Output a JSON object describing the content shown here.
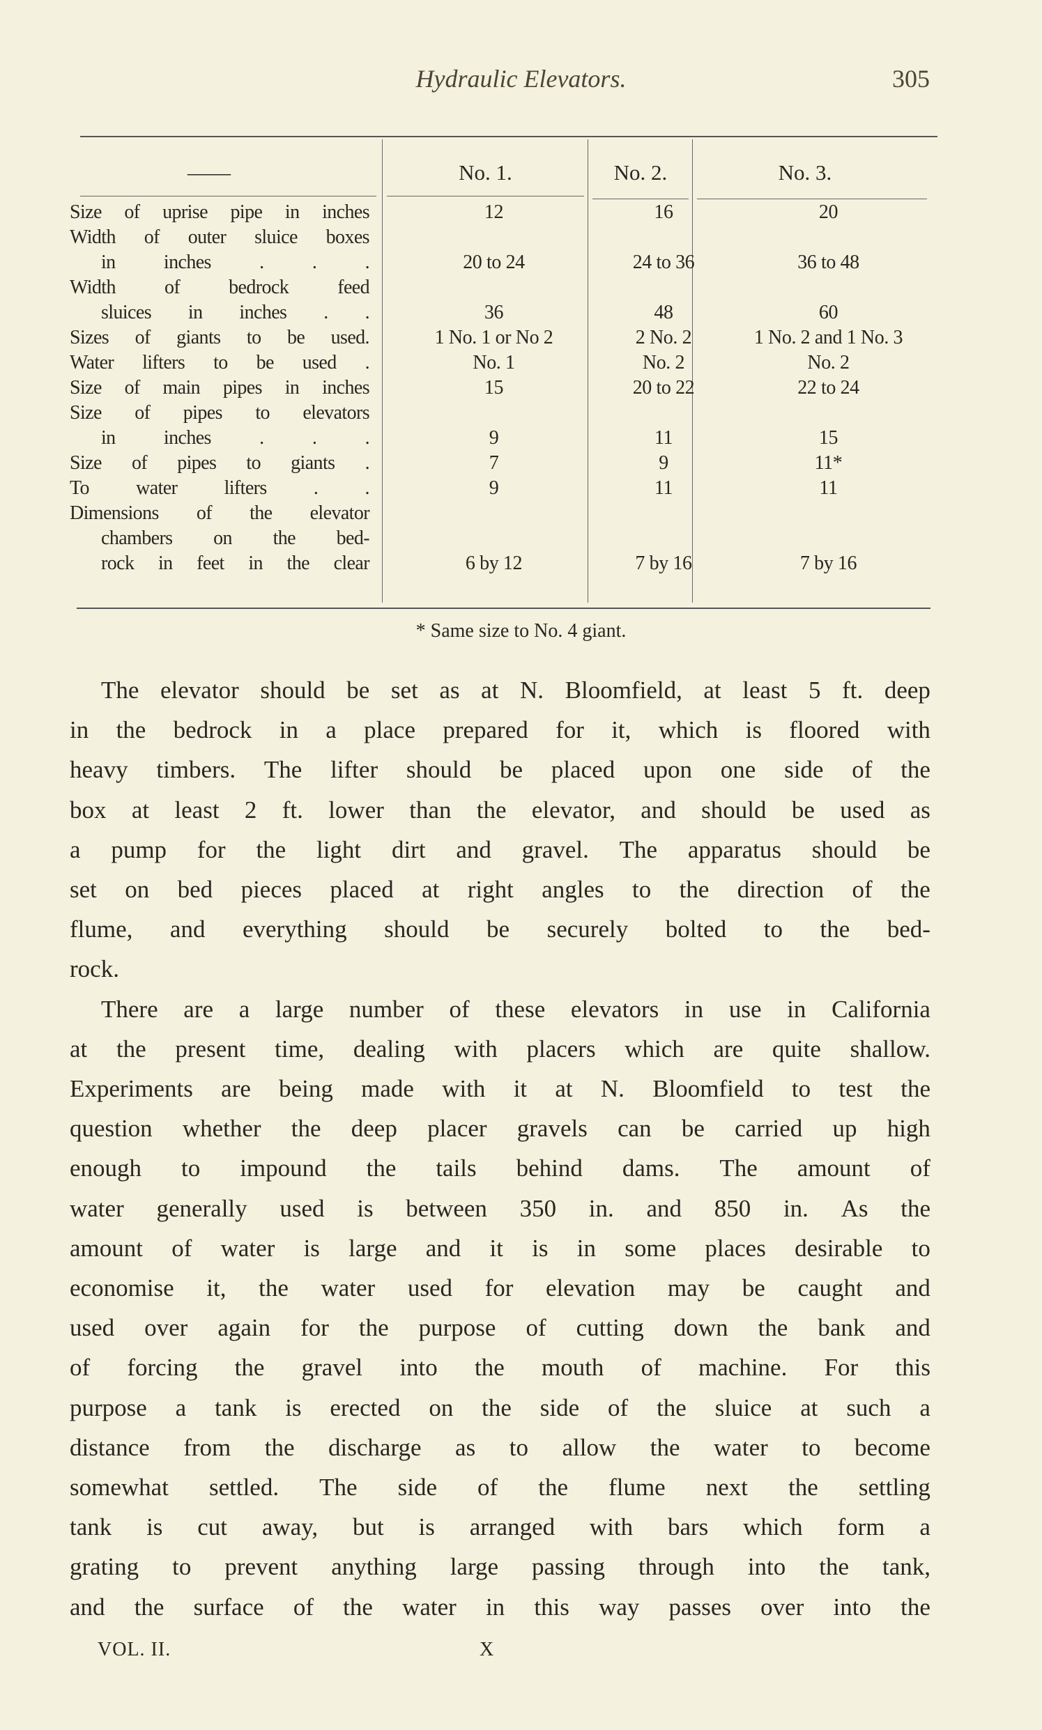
{
  "header": {
    "running_title": "Hydraulic Elevators.",
    "page_number": "305"
  },
  "table": {
    "corner": "——",
    "columns": [
      "No. 1.",
      "No. 2.",
      "No. 3."
    ],
    "rows": [
      {
        "label": [
          "Size of uprise pipe in inches"
        ],
        "values": [
          "12",
          "16",
          "20"
        ]
      },
      {
        "label": [
          "Width of outer sluice boxes",
          "in inches . . ."
        ],
        "values": [
          "20 to 24",
          "24 to 36",
          "36 to 48"
        ]
      },
      {
        "label": [
          "Width of bedrock feed",
          "sluices in inches . ."
        ],
        "values": [
          "36",
          "48",
          "60"
        ]
      },
      {
        "label": [
          "Sizes of giants to be used."
        ],
        "values": [
          "1 No. 1 or No 2",
          "2 No. 2",
          "1 No. 2 and 1 No. 3"
        ]
      },
      {
        "label": [
          "Water lifters to be used ."
        ],
        "values": [
          "No. 1",
          "No. 2",
          "No. 2"
        ]
      },
      {
        "label": [
          "Size of main pipes in inches"
        ],
        "values": [
          "15",
          "20 to 22",
          "22 to 24"
        ]
      },
      {
        "label": [
          "Size of pipes to elevators",
          "in inches . . ."
        ],
        "values": [
          "9",
          "11",
          "15"
        ]
      },
      {
        "label": [
          "Size of pipes to giants ."
        ],
        "values": [
          "7",
          "9",
          "11*"
        ]
      },
      {
        "label": [
          "To water lifters . ."
        ],
        "values": [
          "9",
          "11",
          "11"
        ]
      },
      {
        "label": [
          "Dimensions of the elevator",
          "chambers on the bed-",
          "rock in feet in the clear"
        ],
        "values": [
          "6 by 12",
          "7 by 16",
          "7 by 16"
        ]
      }
    ],
    "footnote": "* Same size to No. 4 giant."
  },
  "body": {
    "paragraphs": [
      [
        "The elevator should be set as at N. Bloomfield, at least 5 ft. deep",
        "in the bedrock in a place prepared for it, which is floored with",
        "heavy timbers. The lifter should be placed upon one side of the",
        "box at least 2 ft. lower than the elevator, and should be used as",
        "a pump for the light dirt and gravel. The apparatus should be",
        "set on bed pieces placed at right angles to the direction of the",
        "flume, and everything should be securely bolted to the bed-",
        "rock."
      ],
      [
        "There are a large number of these elevators in use in California",
        "at the present time, dealing with placers which are quite shallow.",
        "Experiments are being made with it at N. Bloomfield to test the",
        "question whether the deep placer gravels can be carried up high",
        "enough to impound the tails behind dams. The amount of",
        "water generally used is between 350 in. and 850 in. As the",
        "amount of water is large and it is in some places desirable to",
        "economise it, the water used for elevation may be caught and",
        "used over again for the purpose of cutting down the bank and",
        "of forcing the gravel into the mouth of machine. For this",
        "purpose a tank is erected on the side of the sluice at such a",
        "distance from the discharge as to allow the water to become",
        "somewhat settled. The side of the flume next the settling",
        "tank is cut away, but is arranged with bars which form a",
        "grating to prevent anything large passing through into the tank,",
        "and the surface of the water in this way passes over into the"
      ]
    ]
  },
  "footer": {
    "volume": "VOL. II.",
    "signature": "X"
  }
}
